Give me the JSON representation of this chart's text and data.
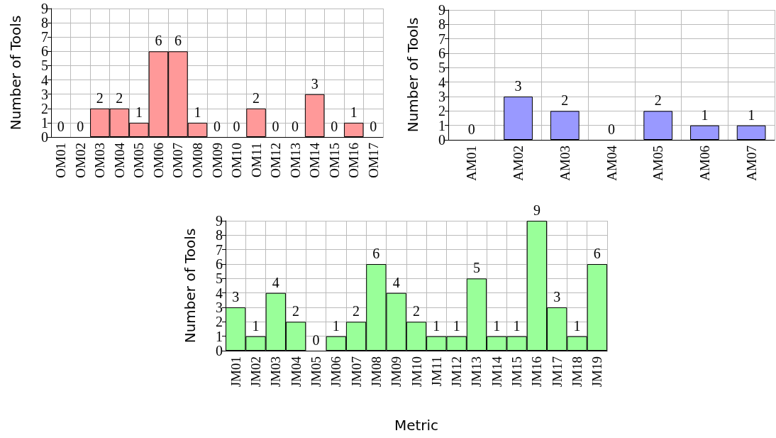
{
  "chart_data": [
    {
      "type": "bar",
      "ylabel": "Number of Tools",
      "categories": [
        "OM01",
        "OM02",
        "OM03",
        "OM04",
        "OM05",
        "OM06",
        "OM07",
        "OM08",
        "OM09",
        "OM10",
        "OM11",
        "OM12",
        "OM13",
        "OM14",
        "OM15",
        "OM16",
        "OM17"
      ],
      "values": [
        0,
        0,
        2,
        2,
        1,
        6,
        6,
        1,
        0,
        0,
        2,
        0,
        0,
        3,
        0,
        1,
        0
      ],
      "color": "#ff9999",
      "ylim": [
        0,
        9
      ],
      "yticks": [
        0,
        1,
        2,
        3,
        4,
        5,
        6,
        7,
        8,
        9
      ],
      "grid": true,
      "data_labels": true
    },
    {
      "type": "bar",
      "ylabel": "Number of Tools",
      "categories": [
        "AM01",
        "AM02",
        "AM03",
        "AM04",
        "AM05",
        "AM06",
        "AM07"
      ],
      "values": [
        0,
        3,
        2,
        0,
        2,
        1,
        1
      ],
      "color": "#9999ff",
      "ylim": [
        0,
        9
      ],
      "yticks": [
        0,
        1,
        2,
        3,
        4,
        5,
        6,
        7,
        8,
        9
      ],
      "grid": true,
      "data_labels": true
    },
    {
      "type": "bar",
      "xlabel": "Metric",
      "ylabel": "Number of Tools",
      "categories": [
        "JM01",
        "JM02",
        "JM03",
        "JM04",
        "JM05",
        "JM06",
        "JM07",
        "JM08",
        "JM09",
        "JM10",
        "JM11",
        "JM12",
        "JM13",
        "JM14",
        "JM15",
        "JM16",
        "JM17",
        "JM18",
        "JM19"
      ],
      "values": [
        3,
        1,
        4,
        2,
        0,
        1,
        2,
        6,
        4,
        2,
        1,
        1,
        5,
        1,
        1,
        9,
        3,
        1,
        6
      ],
      "color": "#99ff99",
      "ylim": [
        0,
        9
      ],
      "yticks": [
        0,
        1,
        2,
        3,
        4,
        5,
        6,
        7,
        8,
        9
      ],
      "grid": true,
      "data_labels": true
    }
  ]
}
